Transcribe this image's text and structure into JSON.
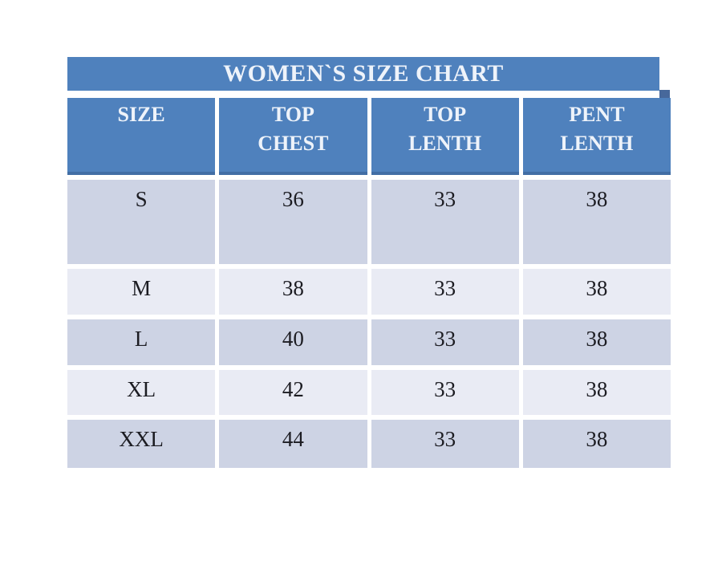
{
  "colors": {
    "page_bg": "#ffffff",
    "accent": "#4f81bd",
    "shadow": "#47689b",
    "band_dark": "#cdd3e4",
    "band_light": "#e9ebf4",
    "header_text": "#eef3fa",
    "body_text": "#1c1c22"
  },
  "table": {
    "title": "WOMEN`S SIZE CHART",
    "columns": [
      "SIZE",
      "TOP\nCHEST",
      "TOP\nLENTH",
      "PENT\nLENTH"
    ],
    "rows": [
      {
        "label": "S",
        "values": [
          "36",
          "33",
          "38"
        ]
      },
      {
        "label": "M",
        "values": [
          "38",
          "33",
          "38"
        ]
      },
      {
        "label": "L",
        "values": [
          "40",
          "33",
          "38"
        ]
      },
      {
        "label": "XL",
        "values": [
          "42",
          "33",
          "38"
        ]
      },
      {
        "label": "XXL",
        "values": [
          "44",
          "33",
          "38"
        ]
      }
    ]
  }
}
